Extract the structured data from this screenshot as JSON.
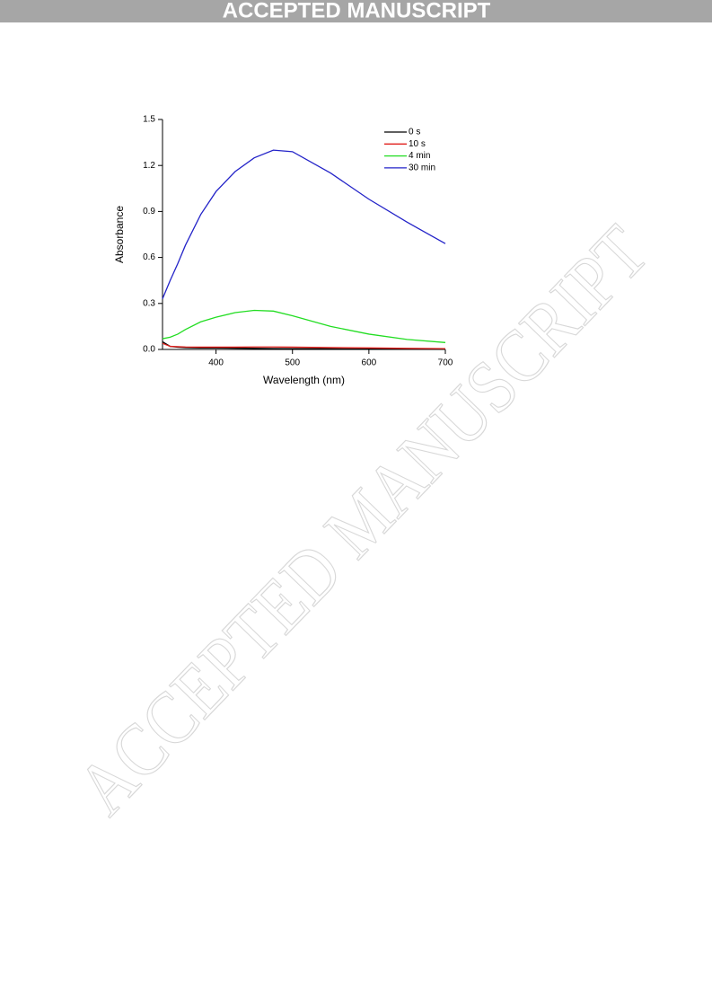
{
  "header": {
    "banner": "ACCEPTED MANUSCRIPT"
  },
  "watermark": "ACCEPTED MANUSCRIPT",
  "chart_data": {
    "type": "line",
    "xlabel": "Wavelength (nm)",
    "ylabel": "Absorbance",
    "x": [
      330,
      340,
      350,
      360,
      380,
      400,
      425,
      450,
      475,
      500,
      550,
      600,
      650,
      700
    ],
    "series": [
      {
        "name": "0 s",
        "color": "#000000",
        "values": [
          0.05,
          0.02,
          0.015,
          0.012,
          0.01,
          0.01,
          0.008,
          0.007,
          0.006,
          0.005,
          0.004,
          0.003,
          0.002,
          0.001
        ]
      },
      {
        "name": "10 s",
        "color": "#e0201c",
        "values": [
          0.04,
          0.02,
          0.018,
          0.016,
          0.015,
          0.015,
          0.015,
          0.016,
          0.016,
          0.015,
          0.012,
          0.01,
          0.007,
          0.005
        ]
      },
      {
        "name": "4 min",
        "color": "#22dd22",
        "values": [
          0.07,
          0.08,
          0.1,
          0.13,
          0.18,
          0.21,
          0.24,
          0.255,
          0.25,
          0.22,
          0.15,
          0.1,
          0.065,
          0.045
        ]
      },
      {
        "name": "30 min",
        "color": "#2323c8",
        "values": [
          0.33,
          0.45,
          0.56,
          0.68,
          0.88,
          1.03,
          1.16,
          1.25,
          1.3,
          1.29,
          1.15,
          0.98,
          0.83,
          0.69
        ]
      }
    ],
    "xlim": [
      330,
      700
    ],
    "ylim": [
      0,
      1.5
    ],
    "xticks": [
      400,
      500,
      600,
      700
    ],
    "yticks": [
      {
        "value": 0,
        "label": "0.0"
      },
      0.3,
      0.6,
      0.9,
      1.2,
      1.5
    ],
    "legend": "upper-right"
  }
}
